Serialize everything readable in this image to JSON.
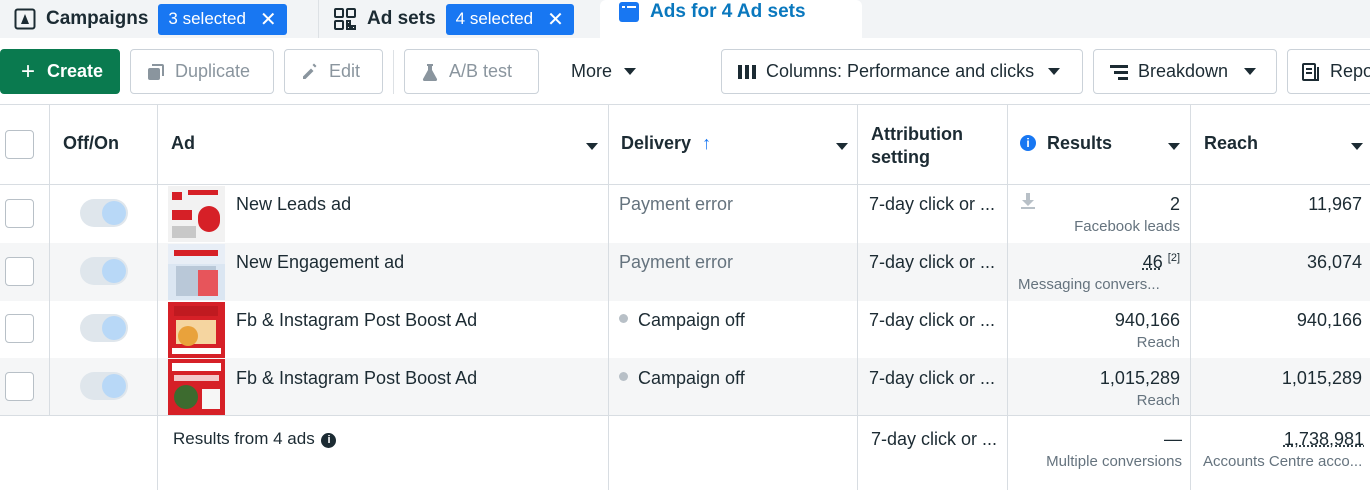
{
  "tabs": {
    "campaigns": {
      "label": "Campaigns",
      "badge": "3 selected"
    },
    "adsets": {
      "label": "Ad sets",
      "badge": "4 selected"
    },
    "ads": {
      "label": "Ads for 4 Ad sets"
    }
  },
  "toolbar": {
    "create": "Create",
    "duplicate": "Duplicate",
    "edit": "Edit",
    "abtest": "A/B test",
    "more": "More",
    "columns": "Columns: Performance and clicks",
    "breakdown": "Breakdown",
    "reports": "Repo"
  },
  "table": {
    "headers": {
      "offon": "Off/On",
      "ad": "Ad",
      "delivery": "Delivery",
      "attribution1": "Attribution",
      "attribution2": "setting",
      "results": "Results",
      "reach": "Reach"
    },
    "rows": [
      {
        "name": "New Leads ad",
        "delivery": "Payment error",
        "attribution": "7-day click or ...",
        "result": "2",
        "result_sub": "Facebook leads",
        "reach": "11,967"
      },
      {
        "name": "New Engagement ad",
        "delivery": "Payment error",
        "attribution": "7-day click or ...",
        "result": "46",
        "result_note": "[2]",
        "result_sub": "Messaging convers...",
        "reach": "36,074"
      },
      {
        "name": "Fb & Instagram Post Boost Ad",
        "delivery": "Campaign off",
        "attribution": "7-day click or ...",
        "result": "940,166",
        "result_sub": "Reach",
        "reach": "940,166"
      },
      {
        "name": "Fb & Instagram Post Boost Ad",
        "delivery": "Campaign off",
        "attribution": "7-day click or ...",
        "result": "1,015,289",
        "result_sub": "Reach",
        "reach": "1,015,289"
      }
    ],
    "footer": {
      "label": "Results from 4 ads",
      "attribution": "7-day click or ...",
      "result": "—",
      "result_sub": "Multiple conversions",
      "reach": "1,738,981",
      "reach_sub": "Accounts Centre acco..."
    }
  },
  "colors": {
    "accent": "#1877f2",
    "create": "#0a7a4f",
    "active_tab_text": "#0a78be"
  }
}
